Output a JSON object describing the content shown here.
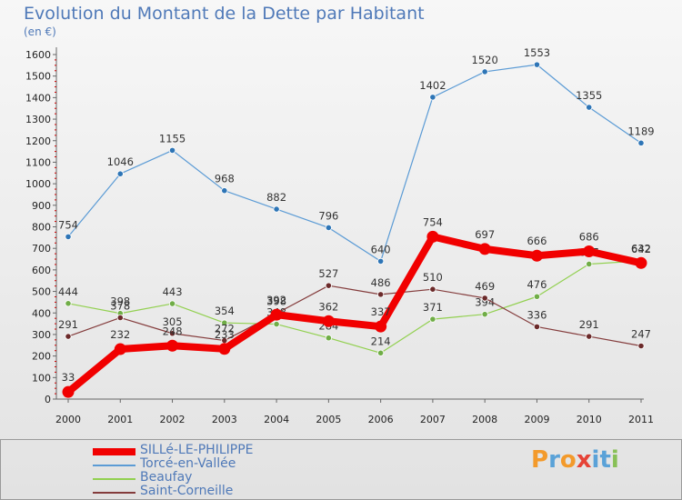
{
  "logo": {
    "text": "Proxiti",
    "colors": [
      "#f39a2b",
      "#5aa2d8",
      "#f39a2b",
      "#e64337",
      "#5aa2d8",
      "#5aa2d8",
      "#88c057"
    ]
  },
  "chart_data": {
    "type": "line",
    "title": "Evolution du Montant de la Dette par Habitant",
    "subtitle": "(en €)",
    "xlabel": "",
    "ylabel": "",
    "x": [
      "2000",
      "2001",
      "2002",
      "2003",
      "2004",
      "2005",
      "2006",
      "2007",
      "2008",
      "2009",
      "2010",
      "2011"
    ],
    "ylim": [
      0,
      1600
    ],
    "yticks": [
      0,
      100,
      200,
      300,
      400,
      500,
      600,
      700,
      800,
      900,
      1000,
      1100,
      1200,
      1300,
      1400,
      1500,
      1600
    ],
    "grid": false,
    "legend_position": "bottom",
    "series": [
      {
        "name": "Torcé-en-Vallée",
        "color": "#5b9bd5",
        "marker": "#2e75b6",
        "emphasis": false,
        "values": [
          754,
          1046,
          1155,
          968,
          882,
          796,
          640,
          1402,
          1520,
          1553,
          1355,
          1189
        ]
      },
      {
        "name": "Beaufay",
        "color": "#92d050",
        "marker": "#70ad47",
        "emphasis": false,
        "values": [
          444,
          398,
          443,
          354,
          348,
          284,
          214,
          371,
          394,
          476,
          627,
          642
        ]
      },
      {
        "name": "Saint-Corneille",
        "color": "#843c3c",
        "marker": "#6b2a2a",
        "emphasis": false,
        "values": [
          291,
          378,
          305,
          272,
          398,
          527,
          486,
          510,
          469,
          336,
          291,
          247
        ]
      },
      {
        "name": "SILLé-LE-PHILIPPE",
        "color": "#f10000",
        "marker": "#f10000",
        "emphasis": true,
        "values": [
          33,
          232,
          248,
          233,
          392,
          362,
          337,
          754,
          697,
          666,
          686,
          632
        ]
      }
    ],
    "legend_order": [
      "SILLé-LE-PHILIPPE",
      "Torcé-en-Vallée",
      "Beaufay",
      "Saint-Corneille"
    ]
  }
}
